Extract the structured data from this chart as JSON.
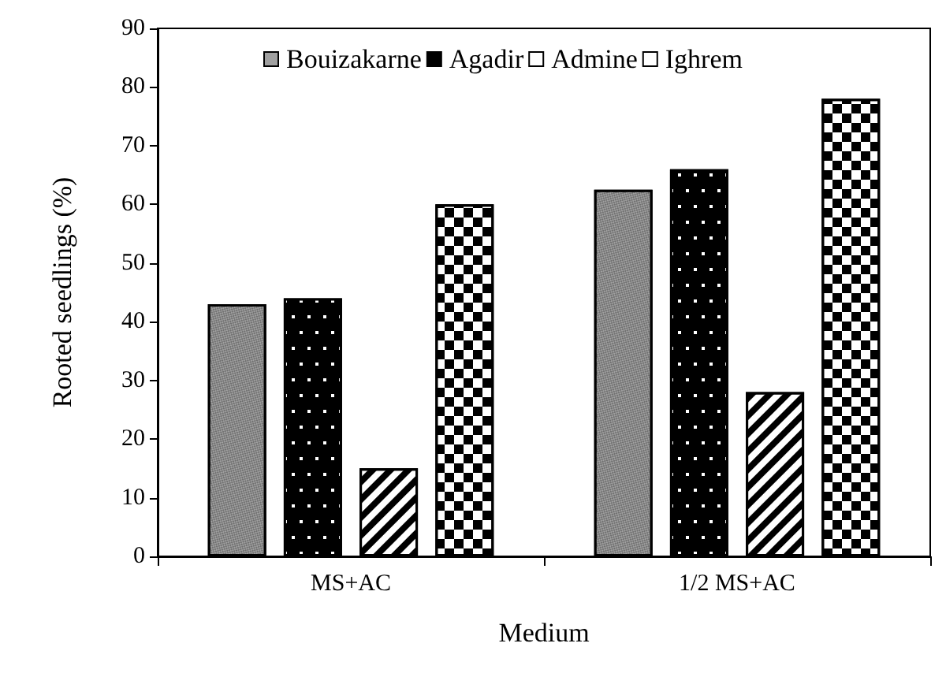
{
  "chart_data": {
    "type": "bar",
    "xlabel": "Medium",
    "ylabel": "Rooted seedlings (%)",
    "categories": [
      "MS+AC",
      "1/2 MS+AC"
    ],
    "series": [
      {
        "name": "Bouizakarne",
        "color": "#a0a0a0",
        "values": [
          43,
          62.5
        ]
      },
      {
        "name": "Agadir",
        "color": "#000000",
        "values": [
          44,
          66
        ]
      },
      {
        "name": "Admine",
        "color": "#ffffff",
        "values": [
          15,
          28
        ]
      },
      {
        "name": "Ighrem",
        "color": "#ffffff",
        "values": [
          60,
          78
        ]
      }
    ],
    "ylim": [
      0,
      90
    ],
    "yticks": [
      0,
      10,
      20,
      30,
      40,
      50,
      60,
      70,
      80,
      90
    ],
    "grid": false,
    "legend": "top"
  }
}
